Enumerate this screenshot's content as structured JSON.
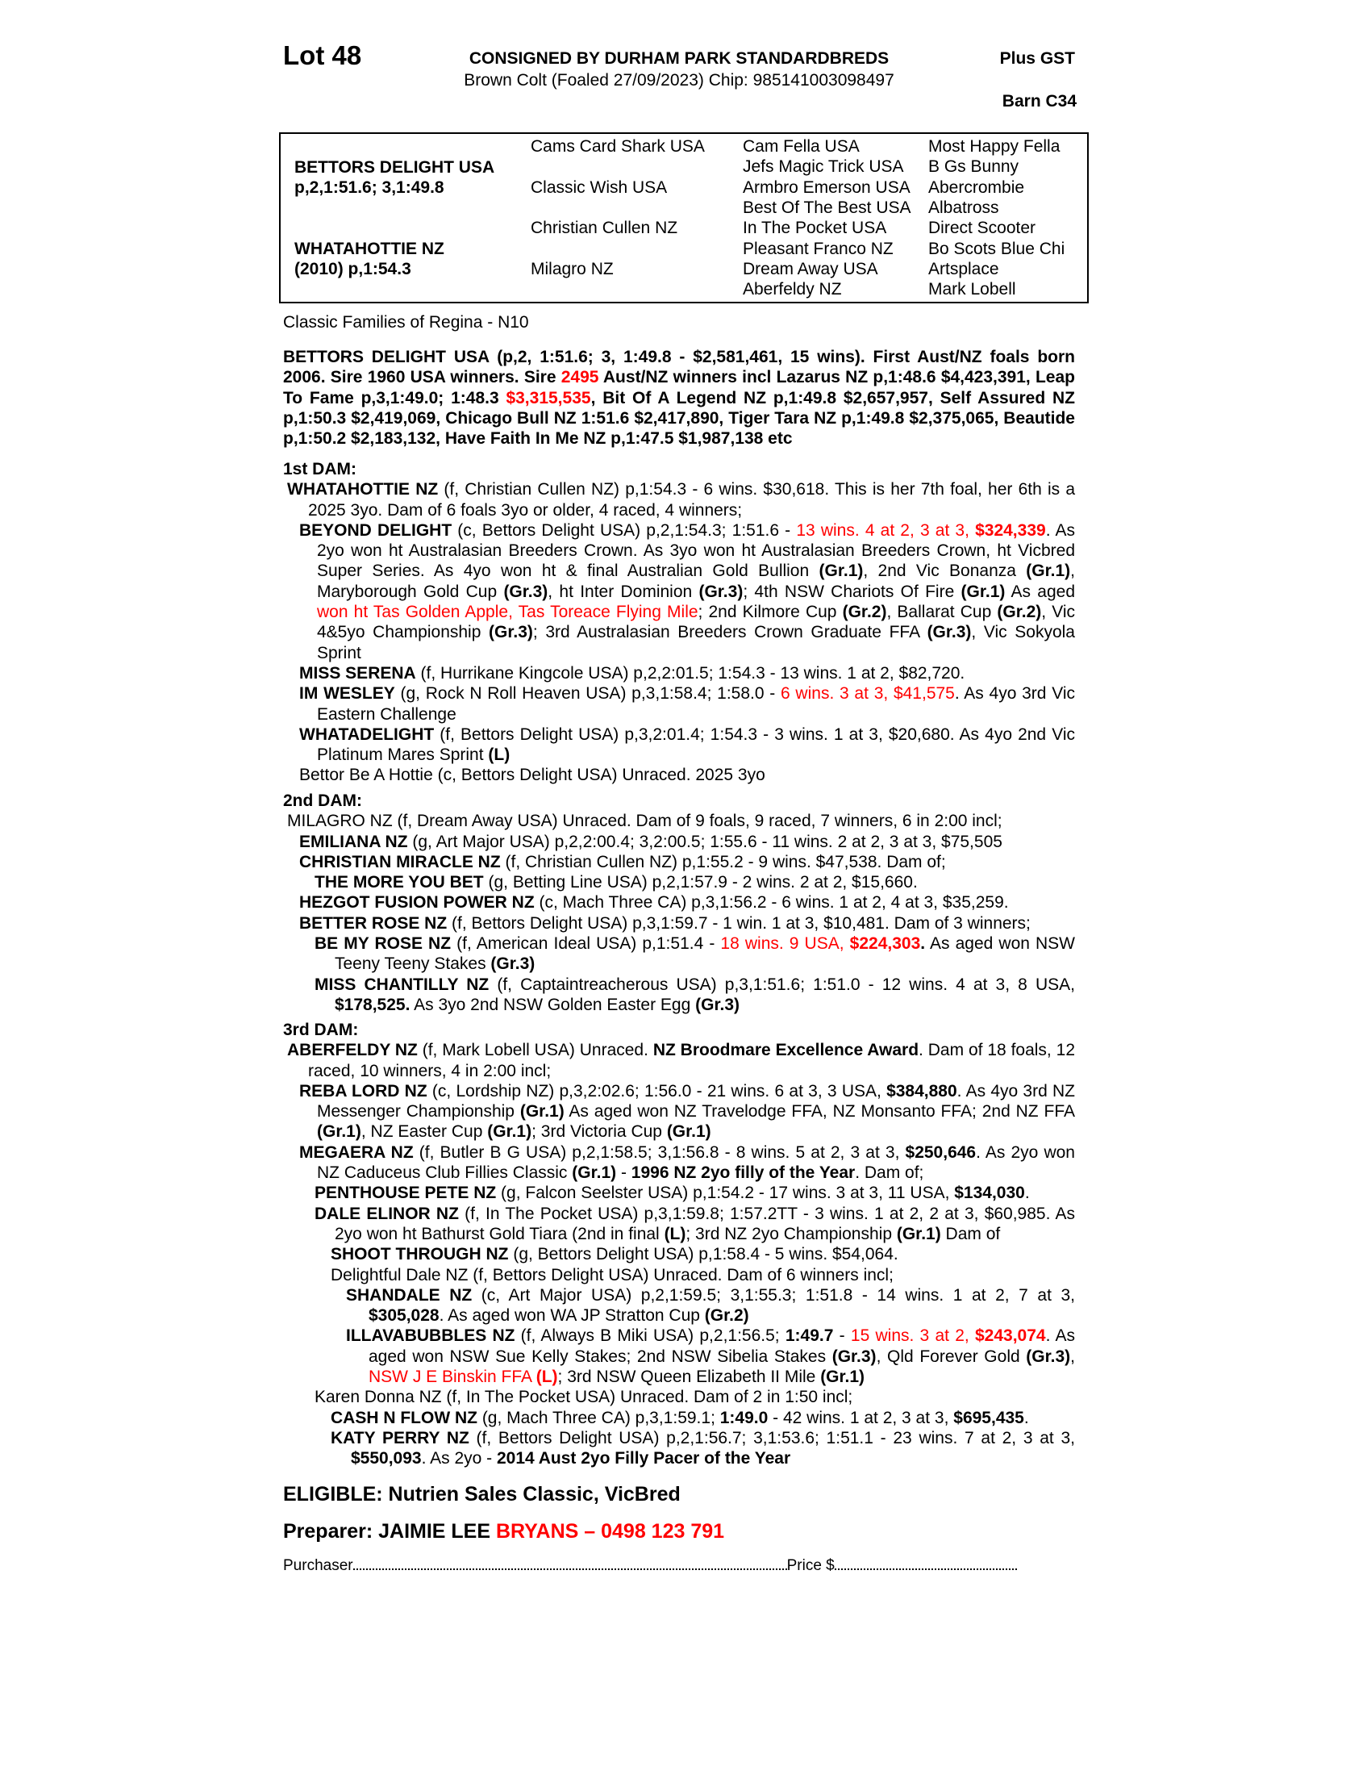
{
  "header": {
    "lot": "Lot 48",
    "consigned": "CONSIGNED BY DURHAM PARK STANDARDBREDS",
    "description": "Brown Colt (Foaled 27/09/2023) Chip: 985141003098497",
    "gst": "Plus GST",
    "barn": "Barn C34"
  },
  "pedigree": {
    "sire_name": "BETTORS DELIGHT USA",
    "sire_record": "p,2,1:51.6; 3,1:49.8",
    "dam_name": "WHATAHOTTIE NZ",
    "dam_record": "(2010) p,1:54.3",
    "gen2": [
      "Cams Card Shark USA",
      "Classic Wish USA",
      "Christian Cullen NZ",
      "Milagro NZ"
    ],
    "gen3": [
      "Cam Fella USA",
      "Jefs Magic Trick USA",
      "Armbro Emerson USA",
      "Best Of The Best USA",
      "In The Pocket USA",
      "Pleasant Franco NZ",
      "Dream Away USA",
      "Aberfeldy NZ"
    ],
    "gen4": [
      "Most Happy Fella",
      "B Gs Bunny",
      "Abercrombie",
      "Albatross",
      "Direct Scooter",
      "Bo Scots Blue Chi",
      "Artsplace",
      "Mark Lobell"
    ]
  },
  "family": "Classic Families of Regina - N10",
  "colors": {
    "text": "#000000",
    "highlight": "#ff0000"
  },
  "sire_para": {
    "segs": [
      [
        "BETTORS DELIGHT USA (p,2, 1:51.6; 3, 1:49.8 - $2,581,461, 15 wins). First Aust/NZ foals born 2006. Sire 1960 USA winners. Sire ",
        "b"
      ],
      [
        "2495",
        "rb"
      ],
      [
        " Aust/NZ winners incl Lazarus NZ p,1:48.6 $4,423,391, Leap To Fame p,3,1:49.0; 1:48.3 ",
        "b"
      ],
      [
        "$3,315,535",
        "rb"
      ],
      [
        ", Bit Of A Legend NZ p,1:49.8 $2,657,957, Self Assured NZ p,1:50.3 $2,419,069, Chicago Bull NZ 1:51.6 $2,417,890,  Tiger Tara NZ p,1:49.8 $2,375,065, Beautide p,1:50.2 $2,183,132, Have Faith In Me NZ p,1:47.5 $1,987,138 etc",
        "b"
      ]
    ]
  },
  "dams": [
    {
      "heading": "1st DAM:",
      "entries": [
        {
          "level": 0,
          "segs": [
            [
              "WHATAHOTTIE NZ",
              "b"
            ],
            [
              " (f, Christian Cullen NZ) p,1:54.3 - 6 wins. $30,618. This is her 7th foal, her 6th is a 2025 3yo. Dam of 6 foals 3yo or older, 4 raced, 4 winners;",
              ""
            ]
          ]
        },
        {
          "level": 1,
          "segs": [
            [
              "BEYOND DELIGHT",
              "b"
            ],
            [
              " (c, Bettors Delight USA) p,2,1:54.3; 1:51.6 - ",
              ""
            ],
            [
              "13 wins. 4 at 2, 3 at 3, ",
              "r"
            ],
            [
              "$324,339",
              "rb"
            ],
            [
              ". As 2yo won ht Australasian Breeders Crown. As 3yo won ht Australasian Breeders Crown, ht Vicbred Super Series. As 4yo won ht & final Australian Gold Bullion ",
              ""
            ],
            [
              "(Gr.1)",
              "b"
            ],
            [
              ", 2nd Vic Bonanza ",
              ""
            ],
            [
              "(Gr.1)",
              "b"
            ],
            [
              ", Maryborough Gold Cup ",
              ""
            ],
            [
              "(Gr.3)",
              "b"
            ],
            [
              ", ht Inter Dominion ",
              ""
            ],
            [
              "(Gr.3)",
              "b"
            ],
            [
              "; 4th NSW Chariots Of Fire ",
              ""
            ],
            [
              "(Gr.1)",
              "b"
            ],
            [
              " As aged ",
              ""
            ],
            [
              "won ht Tas Golden Apple, Tas Toreace Flying Mile",
              "r"
            ],
            [
              "; 2nd Kilmore Cup ",
              ""
            ],
            [
              "(Gr.2)",
              "b"
            ],
            [
              ", Ballarat Cup ",
              ""
            ],
            [
              "(Gr.2)",
              "b"
            ],
            [
              ", Vic 4&5yo Championship ",
              ""
            ],
            [
              "(Gr.3)",
              "b"
            ],
            [
              "; 3rd Australasian Breeders Crown Graduate FFA ",
              ""
            ],
            [
              "(Gr.3)",
              "b"
            ],
            [
              ", Vic Sokyola Sprint",
              ""
            ]
          ]
        },
        {
          "level": 1,
          "segs": [
            [
              "MISS SERENA",
              "b"
            ],
            [
              " (f, Hurrikane Kingcole USA) p,2,2:01.5; 1:54.3 - 13 wins. 1 at 2, $82,720.",
              ""
            ]
          ]
        },
        {
          "level": 1,
          "segs": [
            [
              "IM WESLEY",
              "b"
            ],
            [
              " (g, Rock N Roll Heaven USA) p,3,1:58.4; 1:58.0 - ",
              ""
            ],
            [
              "6 wins. 3 at 3, $41,575",
              "r"
            ],
            [
              ". As 4yo 3rd Vic Eastern Challenge",
              ""
            ]
          ]
        },
        {
          "level": 1,
          "segs": [
            [
              "WHATADELIGHT",
              "b"
            ],
            [
              " (f, Bettors Delight USA) p,3,2:01.4; 1:54.3 - 3 wins. 1 at 3, $20,680. As 4yo 2nd Vic Platinum Mares Sprint ",
              ""
            ],
            [
              "(L)",
              "b"
            ]
          ]
        },
        {
          "level": 1,
          "segs": [
            [
              "Bettor Be A Hottie (c, Bettors Delight USA) Unraced. 2025 3yo",
              ""
            ]
          ]
        }
      ]
    },
    {
      "heading": "2nd DAM:",
      "entries": [
        {
          "level": 0,
          "segs": [
            [
              "MILAGRO NZ (f, Dream Away USA) Unraced. Dam of 9 foals, 9 raced, 7 winners, 6 in 2:00 incl;",
              ""
            ]
          ]
        },
        {
          "level": 1,
          "segs": [
            [
              "EMILIANA NZ",
              "b"
            ],
            [
              " (g, Art Major USA) p,2,2:00.4; 3,2:00.5; 1:55.6 - 11 wins. 2 at 2, 3 at 3, $75,505",
              ""
            ]
          ]
        },
        {
          "level": 1,
          "segs": [
            [
              "CHRISTIAN MIRACLE NZ",
              "b"
            ],
            [
              " (f, Christian Cullen NZ) p,1:55.2 - 9 wins. $47,538. Dam of;",
              ""
            ]
          ]
        },
        {
          "level": 2,
          "segs": [
            [
              "THE MORE YOU BET",
              "b"
            ],
            [
              " (g, Betting Line USA) p,2,1:57.9 - 2 wins. 2 at 2, $15,660.",
              ""
            ]
          ]
        },
        {
          "level": 1,
          "segs": [
            [
              "HEZGOT FUSION POWER NZ",
              "b"
            ],
            [
              " (c, Mach Three CA) p,3,1:56.2 - 6 wins. 1 at 2, 4 at 3, $35,259.",
              ""
            ]
          ]
        },
        {
          "level": 1,
          "segs": [
            [
              "BETTER ROSE NZ",
              "b"
            ],
            [
              " (f, Bettors Delight USA) p,3,1:59.7 - 1 win. 1 at 3, $10,481. Dam of 3 winners;",
              ""
            ]
          ]
        },
        {
          "level": 2,
          "segs": [
            [
              "BE MY ROSE NZ",
              "b"
            ],
            [
              " (f, American Ideal USA) p,1:51.4 - ",
              ""
            ],
            [
              "18 wins. 9 USA, ",
              "r"
            ],
            [
              "$224,303",
              "rb"
            ],
            [
              ".",
              "b"
            ],
            [
              " As aged won NSW Teeny Teeny Stakes ",
              ""
            ],
            [
              "(Gr.3)",
              "b"
            ]
          ]
        },
        {
          "level": 2,
          "segs": [
            [
              "MISS CHANTILLY NZ",
              "b"
            ],
            [
              " (f, Captaintreacherous USA) p,3,1:51.6; 1:51.0 - 12 wins. 4 at 3, 8 USA, ",
              ""
            ],
            [
              "$178,525.",
              "b"
            ],
            [
              " As 3yo 2nd NSW Golden Easter Egg ",
              ""
            ],
            [
              "(Gr.3)",
              "b"
            ]
          ]
        }
      ]
    },
    {
      "heading": "3rd DAM:",
      "entries": [
        {
          "level": 0,
          "segs": [
            [
              "ABERFELDY NZ",
              "b"
            ],
            [
              " (f, Mark Lobell USA) Unraced. ",
              ""
            ],
            [
              "NZ Broodmare Excellence Award",
              "b"
            ],
            [
              ". Dam of 18 foals, 12 raced, 10 winners, 4 in 2:00 incl;",
              ""
            ]
          ]
        },
        {
          "level": 1,
          "segs": [
            [
              "REBA LORD NZ",
              "b"
            ],
            [
              " (c, Lordship NZ) p,3,2:02.6; 1:56.0 - 21 wins. 6 at 3, 3 USA, ",
              ""
            ],
            [
              "$384,880",
              "b"
            ],
            [
              ". As 4yo 3rd NZ Messenger Championship ",
              ""
            ],
            [
              "(Gr.1)",
              "b"
            ],
            [
              " As aged won NZ Travelodge FFA, NZ Monsanto FFA; 2nd NZ FFA ",
              ""
            ],
            [
              "(Gr.1)",
              "b"
            ],
            [
              ", NZ Easter Cup ",
              ""
            ],
            [
              "(Gr.1)",
              "b"
            ],
            [
              "; 3rd Victoria Cup ",
              ""
            ],
            [
              "(Gr.1)",
              "b"
            ]
          ]
        },
        {
          "level": 1,
          "segs": [
            [
              "MEGAERA NZ",
              "b"
            ],
            [
              " (f, Butler B G USA) p,2,1:58.5; 3,1:56.8 - 8 wins. 5 at 2, 3 at 3, ",
              ""
            ],
            [
              "$250,646",
              "b"
            ],
            [
              ". As 2yo won NZ Caduceus Club Fillies Classic ",
              ""
            ],
            [
              "(Gr.1)",
              "b"
            ],
            [
              " - ",
              ""
            ],
            [
              "1996 NZ 2yo filly of the Year",
              "b"
            ],
            [
              ". Dam of;",
              ""
            ]
          ]
        },
        {
          "level": 2,
          "segs": [
            [
              "PENTHOUSE PETE NZ",
              "b"
            ],
            [
              " (g, Falcon Seelster USA) p,1:54.2 - 17 wins. 3 at 3, 11 USA, ",
              ""
            ],
            [
              "$134,030",
              "b"
            ],
            [
              ".",
              ""
            ]
          ]
        },
        {
          "level": 2,
          "segs": [
            [
              "DALE ELINOR NZ",
              "b"
            ],
            [
              " (f, In The Pocket USA) p,3,1:59.8; 1:57.2TT - 3 wins. 1 at 2, 2 at 3, $60,985. As 2yo won ht Bathurst Gold Tiara (2nd in final ",
              ""
            ],
            [
              "(L)",
              "b"
            ],
            [
              "; 3rd NZ 2yo Championship ",
              ""
            ],
            [
              "(Gr.1)",
              "b"
            ],
            [
              " Dam of",
              ""
            ]
          ]
        },
        {
          "level": 3,
          "segs": [
            [
              "SHOOT THROUGH NZ",
              "b"
            ],
            [
              " (g, Bettors Delight USA) p,1:58.4 - 5 wins. $54,064.",
              ""
            ]
          ]
        },
        {
          "level": 3,
          "segs": [
            [
              "Delightful Dale NZ (f, Bettors Delight USA) Unraced. Dam of 6 winners incl;",
              ""
            ]
          ]
        },
        {
          "level": 4,
          "segs": [
            [
              "SHANDALE NZ",
              "b"
            ],
            [
              " (c, Art Major USA) p,2,1:59.5; 3,1:55.3; 1:51.8 - 14 wins. 1 at 2, 7 at 3, ",
              ""
            ],
            [
              "$305,028",
              "b"
            ],
            [
              ". As aged won WA JP Stratton Cup ",
              ""
            ],
            [
              "(Gr.2)",
              "b"
            ]
          ]
        },
        {
          "level": 4,
          "segs": [
            [
              "ILLAVABUBBLES NZ",
              "b"
            ],
            [
              " (f, Always B Miki USA) p,2,1:56.5; ",
              ""
            ],
            [
              "1:49.7",
              "b"
            ],
            [
              " - ",
              ""
            ],
            [
              "15 wins. 3 at 2, ",
              "r"
            ],
            [
              "$243,074",
              "rb"
            ],
            [
              ". As aged won NSW Sue Kelly Stakes; 2nd NSW Sibelia Stakes ",
              ""
            ],
            [
              "(Gr.3)",
              "b"
            ],
            [
              ", Qld Forever Gold ",
              ""
            ],
            [
              "(Gr.3)",
              "b"
            ],
            [
              ", ",
              ""
            ],
            [
              "NSW J E Binskin FFA ",
              "r"
            ],
            [
              "(L)",
              "rb"
            ],
            [
              "; 3rd NSW Queen Elizabeth II Mile ",
              ""
            ],
            [
              "(Gr.1)",
              "b"
            ]
          ]
        },
        {
          "level": 2,
          "segs": [
            [
              "Karen Donna NZ (f, In The Pocket USA) Unraced. Dam of 2 in 1:50 incl;",
              ""
            ]
          ]
        },
        {
          "level": 3,
          "segs": [
            [
              "CASH N FLOW NZ",
              "b"
            ],
            [
              " (g, Mach Three CA) p,3,1:59.1; ",
              ""
            ],
            [
              "1:49.0",
              "b"
            ],
            [
              " - 42 wins. 1 at 2, 3 at 3, ",
              ""
            ],
            [
              "$695,435",
              "b"
            ],
            [
              ".",
              ""
            ]
          ]
        },
        {
          "level": 3,
          "segs": [
            [
              "KATY PERRY NZ",
              "b"
            ],
            [
              " (f, Bettors Delight USA) p,2,1:56.7; 3,1:53.6; 1:51.1 - 23 wins. 7 at 2, 3 at 3, ",
              ""
            ],
            [
              "$550,093",
              "b"
            ],
            [
              ". As 2yo - ",
              ""
            ],
            [
              "2014 Aust 2yo Filly Pacer of the Year",
              "b"
            ]
          ]
        }
      ]
    }
  ],
  "eligible": "ELIGIBLE: Nutrien Sales Classic, VicBred",
  "preparer": {
    "label": "Preparer: JAIMIE LEE ",
    "contact": "BRYANS – 0498 123 791"
  },
  "purchase": {
    "purchaser_label": "Purchaser",
    "price_label": "Price $"
  }
}
